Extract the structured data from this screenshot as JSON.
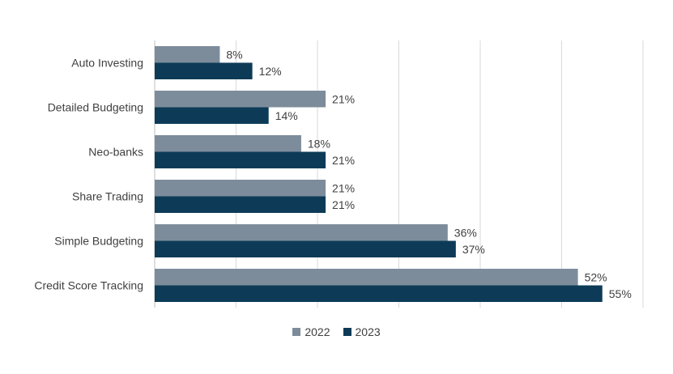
{
  "chart_data": {
    "type": "bar",
    "orientation": "horizontal",
    "categories": [
      "Auto Investing",
      "Detailed Budgeting",
      "Neo-banks",
      "Share Trading",
      "Simple Budgeting",
      "Credit Score Tracking"
    ],
    "series": [
      {
        "name": "2022",
        "color": "#7D8C9B",
        "values": [
          8,
          21,
          18,
          21,
          36,
          52
        ],
        "labels": [
          "8%",
          "21%",
          "18%",
          "21%",
          "36%",
          "52%"
        ]
      },
      {
        "name": "2023",
        "color": "#0D3B57",
        "values": [
          12,
          14,
          21,
          21,
          37,
          55
        ],
        "labels": [
          "12%",
          "14%",
          "21%",
          "21%",
          "37%",
          "55%"
        ]
      }
    ],
    "xlim": [
      0,
      60
    ],
    "grid": "vertical",
    "legend_position": "bottom"
  }
}
